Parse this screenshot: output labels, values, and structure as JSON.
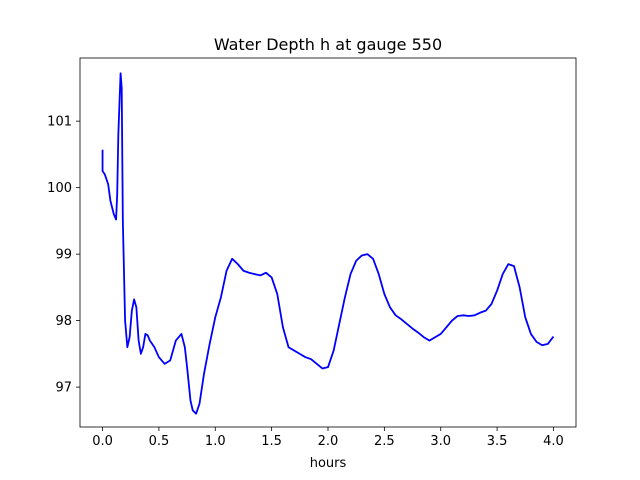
{
  "chart_data": {
    "type": "line",
    "title": "Water Depth h at gauge 550",
    "xlabel": "hours",
    "ylabel": "",
    "xlim": [
      -0.2,
      4.2
    ],
    "ylim": [
      96.4,
      101.95
    ],
    "xticks": [
      0.0,
      0.5,
      1.0,
      1.5,
      2.0,
      2.5,
      3.0,
      3.5,
      4.0
    ],
    "xtick_labels": [
      "0.0",
      "0.5",
      "1.0",
      "1.5",
      "2.0",
      "2.5",
      "3.0",
      "3.5",
      "4.0"
    ],
    "yticks": [
      97,
      98,
      99,
      100,
      101
    ],
    "ytick_labels": [
      "97",
      "98",
      "99",
      "100",
      "101"
    ],
    "grid": false,
    "series": [
      {
        "color": "#0000ff",
        "x": [
          0.0,
          0.0,
          0.02,
          0.05,
          0.07,
          0.1,
          0.12,
          0.13,
          0.14,
          0.16,
          0.17,
          0.18,
          0.2,
          0.22,
          0.24,
          0.26,
          0.28,
          0.3,
          0.32,
          0.34,
          0.36,
          0.38,
          0.4,
          0.42,
          0.44,
          0.46,
          0.5,
          0.55,
          0.6,
          0.65,
          0.7,
          0.73,
          0.75,
          0.78,
          0.8,
          0.83,
          0.86,
          0.9,
          0.95,
          1.0,
          1.05,
          1.1,
          1.15,
          1.2,
          1.25,
          1.3,
          1.35,
          1.4,
          1.45,
          1.5,
          1.55,
          1.6,
          1.65,
          1.7,
          1.75,
          1.8,
          1.85,
          1.9,
          1.95,
          2.0,
          2.05,
          2.1,
          2.15,
          2.2,
          2.25,
          2.3,
          2.35,
          2.4,
          2.45,
          2.5,
          2.55,
          2.6,
          2.65,
          2.7,
          2.75,
          2.8,
          2.85,
          2.9,
          2.95,
          3.0,
          3.05,
          3.1,
          3.15,
          3.2,
          3.25,
          3.3,
          3.35,
          3.4,
          3.45,
          3.5,
          3.55,
          3.6,
          3.65,
          3.7,
          3.75,
          3.8,
          3.85,
          3.9,
          3.95,
          4.0
        ],
        "y": [
          100.57,
          100.25,
          100.2,
          100.05,
          99.8,
          99.6,
          99.52,
          99.9,
          100.8,
          101.72,
          101.5,
          99.5,
          98.0,
          97.6,
          97.75,
          98.15,
          98.32,
          98.2,
          97.7,
          97.5,
          97.6,
          97.8,
          97.78,
          97.7,
          97.65,
          97.6,
          97.45,
          97.35,
          97.4,
          97.7,
          97.8,
          97.6,
          97.3,
          96.8,
          96.65,
          96.6,
          96.75,
          97.2,
          97.65,
          98.05,
          98.35,
          98.75,
          98.93,
          98.85,
          98.75,
          98.72,
          98.7,
          98.68,
          98.72,
          98.65,
          98.4,
          97.9,
          97.6,
          97.55,
          97.5,
          97.45,
          97.42,
          97.35,
          97.28,
          97.3,
          97.55,
          97.95,
          98.35,
          98.7,
          98.9,
          98.98,
          99.0,
          98.93,
          98.7,
          98.4,
          98.2,
          98.08,
          98.02,
          97.95,
          97.88,
          97.82,
          97.75,
          97.7,
          97.75,
          97.8,
          97.9,
          98.0,
          98.07,
          98.08,
          98.07,
          98.08,
          98.12,
          98.15,
          98.25,
          98.45,
          98.7,
          98.85,
          98.82,
          98.5,
          98.05,
          97.8,
          97.68,
          97.63,
          97.65,
          97.76
        ]
      }
    ]
  }
}
